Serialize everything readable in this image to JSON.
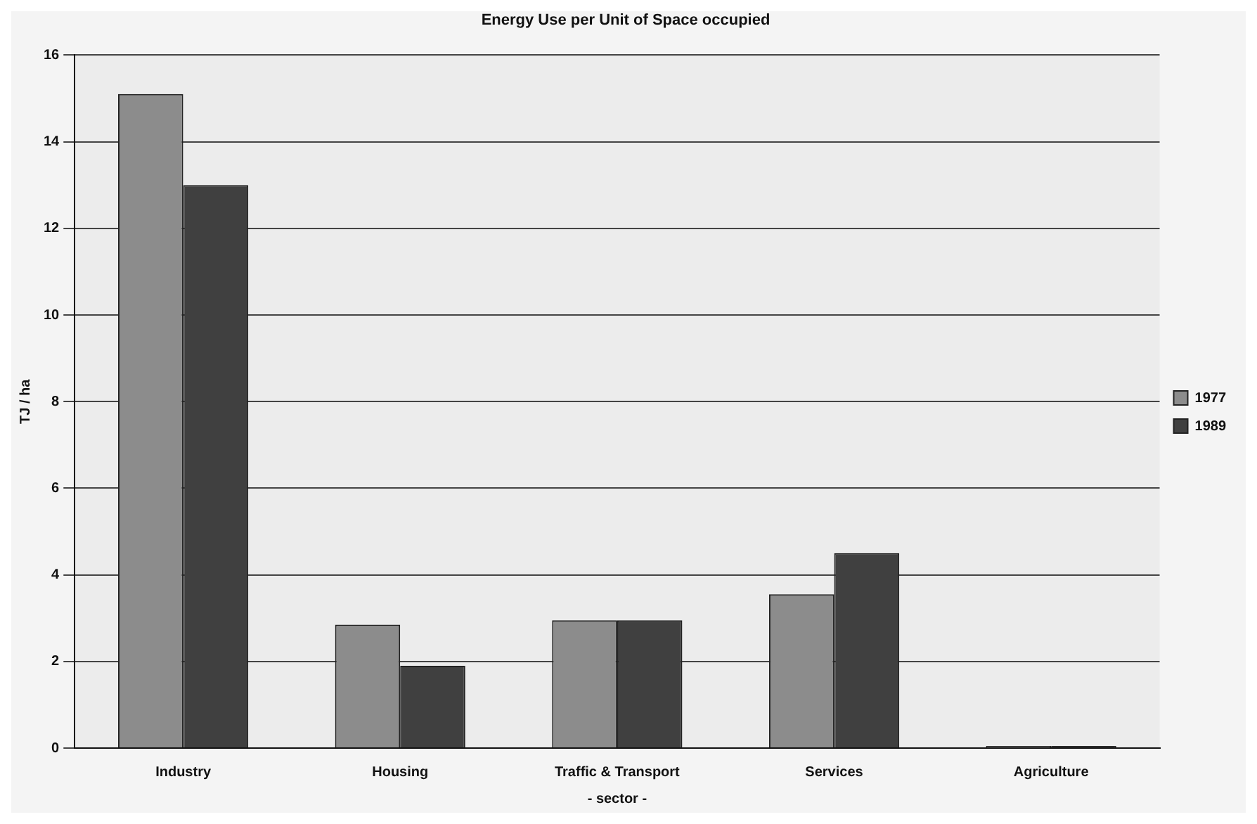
{
  "chart_data": {
    "type": "bar",
    "title": "Energy Use per Unit of Space occupied",
    "xlabel": "- sector -",
    "ylabel": "TJ / ha",
    "categories": [
      "Industry",
      "Housing",
      "Traffic & Transport",
      "Services",
      "Agriculture"
    ],
    "series": [
      {
        "name": "1977",
        "color": "#8c8c8c",
        "values": [
          15.1,
          2.85,
          2.95,
          3.55,
          0.05
        ]
      },
      {
        "name": "1989",
        "color": "#404040",
        "values": [
          13.0,
          1.9,
          2.95,
          4.5,
          0.05
        ]
      }
    ],
    "ylim": [
      0,
      16
    ],
    "yticks": [
      0,
      2,
      4,
      6,
      8,
      10,
      12,
      14,
      16
    ],
    "grid": "y",
    "legend": "right"
  }
}
